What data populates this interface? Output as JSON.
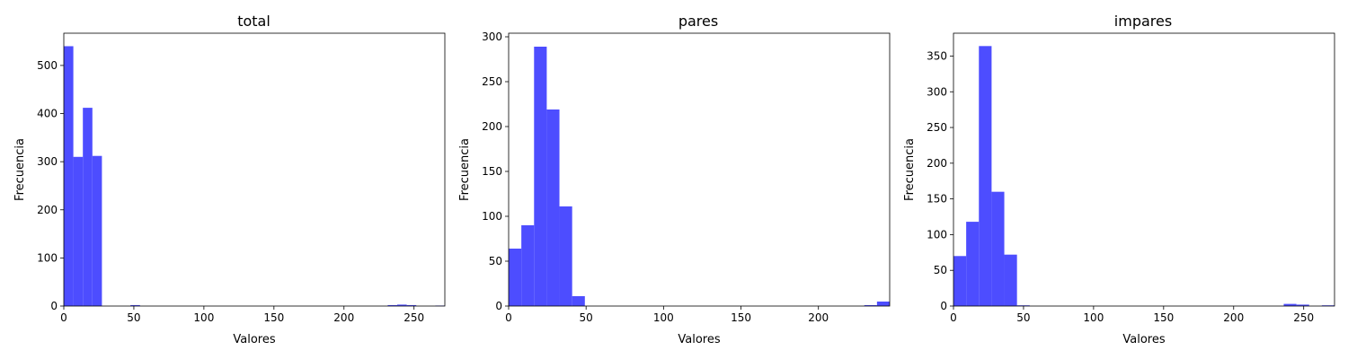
{
  "chart_data": [
    {
      "type": "bar",
      "title": "total",
      "xlabel": "Valores",
      "ylabel": "Frecuencia",
      "xlim": [
        0,
        272
      ],
      "ylim": [
        0,
        567
      ],
      "xticks": [
        0,
        50,
        100,
        150,
        200,
        250
      ],
      "yticks": [
        0,
        100,
        200,
        300,
        400,
        500
      ],
      "bins": [
        {
          "x0": 0,
          "x1": 6.8,
          "count": 540
        },
        {
          "x0": 6.8,
          "x1": 13.6,
          "count": 310
        },
        {
          "x0": 13.6,
          "x1": 20.4,
          "count": 412
        },
        {
          "x0": 20.4,
          "x1": 27.2,
          "count": 312
        },
        {
          "x0": 47.6,
          "x1": 54.4,
          "count": 2
        },
        {
          "x0": 231.2,
          "x1": 238.0,
          "count": 2
        },
        {
          "x0": 238.0,
          "x1": 244.8,
          "count": 3
        },
        {
          "x0": 244.8,
          "x1": 251.6,
          "count": 2
        },
        {
          "x0": 265.2,
          "x1": 272.0,
          "count": 1
        }
      ],
      "color": "#4d4dff"
    },
    {
      "type": "bar",
      "title": "pares",
      "xlabel": "Valores",
      "ylabel": "Frecuencia",
      "xlim": [
        0,
        246
      ],
      "ylim": [
        0,
        304
      ],
      "xticks": [
        0,
        50,
        100,
        150,
        200
      ],
      "yticks": [
        0,
        50,
        100,
        150,
        200,
        250,
        300
      ],
      "bins": [
        {
          "x0": 0,
          "x1": 8.2,
          "count": 64
        },
        {
          "x0": 8.2,
          "x1": 16.4,
          "count": 90
        },
        {
          "x0": 16.4,
          "x1": 24.6,
          "count": 289
        },
        {
          "x0": 24.6,
          "x1": 32.8,
          "count": 219
        },
        {
          "x0": 32.8,
          "x1": 41.0,
          "count": 111
        },
        {
          "x0": 41.0,
          "x1": 49.2,
          "count": 11
        },
        {
          "x0": 229.6,
          "x1": 237.8,
          "count": 1
        },
        {
          "x0": 237.8,
          "x1": 246.0,
          "count": 5
        }
      ],
      "color": "#4d4dff"
    },
    {
      "type": "bar",
      "title": "impares",
      "xlabel": "Valores",
      "ylabel": "Frecuencia",
      "xlim": [
        0,
        272
      ],
      "ylim": [
        0,
        382
      ],
      "xticks": [
        0,
        50,
        100,
        150,
        200,
        250
      ],
      "yticks": [
        0,
        50,
        100,
        150,
        200,
        250,
        300,
        350
      ],
      "bins": [
        {
          "x0": 0,
          "x1": 9.0667,
          "count": 70
        },
        {
          "x0": 9.0667,
          "x1": 18.1333,
          "count": 118
        },
        {
          "x0": 18.1333,
          "x1": 27.2,
          "count": 364
        },
        {
          "x0": 27.2,
          "x1": 36.2667,
          "count": 160
        },
        {
          "x0": 36.2667,
          "x1": 45.3333,
          "count": 72
        },
        {
          "x0": 45.3333,
          "x1": 54.4,
          "count": 1
        },
        {
          "x0": 235.7333,
          "x1": 244.8,
          "count": 3
        },
        {
          "x0": 244.8,
          "x1": 253.8667,
          "count": 2
        },
        {
          "x0": 262.9333,
          "x1": 272.0,
          "count": 1
        }
      ],
      "color": "#4d4dff"
    }
  ]
}
